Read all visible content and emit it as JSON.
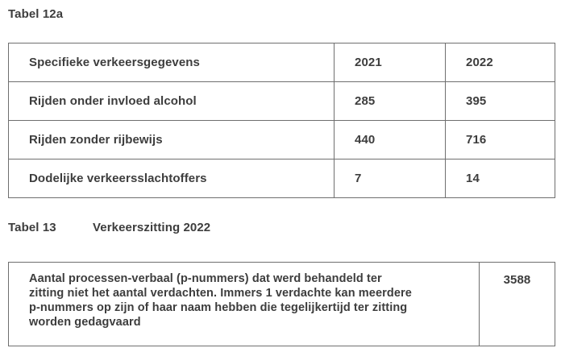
{
  "page": {
    "background": "#ffffff",
    "text_color": "#3d3d3d",
    "border_color": "#6f6f6f"
  },
  "table12a": {
    "title": "Tabel 12a",
    "header": {
      "label": "Specifieke verkeersgegevens",
      "col_2021": "2021",
      "col_2022": "2022"
    },
    "rows": [
      {
        "label": "Rijden onder invloed alcohol",
        "val_2021": "285",
        "val_2022": "395"
      },
      {
        "label": "Rijden zonder rijbewijs",
        "val_2021": "440",
        "val_2022": "716"
      },
      {
        "label": "Dodelijke verkeersslachtoffers",
        "val_2021": "7",
        "val_2022": "14"
      }
    ]
  },
  "table13": {
    "title": "Tabel 13",
    "subtitle": "Verkeerszitting 2022",
    "row": {
      "label_lines": [
        "Aantal processen-verbaal (p-nummers) dat werd behandeld ter",
        "zitting niet het aantal verdachten. Immers 1 verdachte kan meerdere",
        "p-nummers op zijn of haar naam hebben die tegelijkertijd ter zitting",
        "worden gedagvaard"
      ],
      "value": "3588"
    }
  }
}
